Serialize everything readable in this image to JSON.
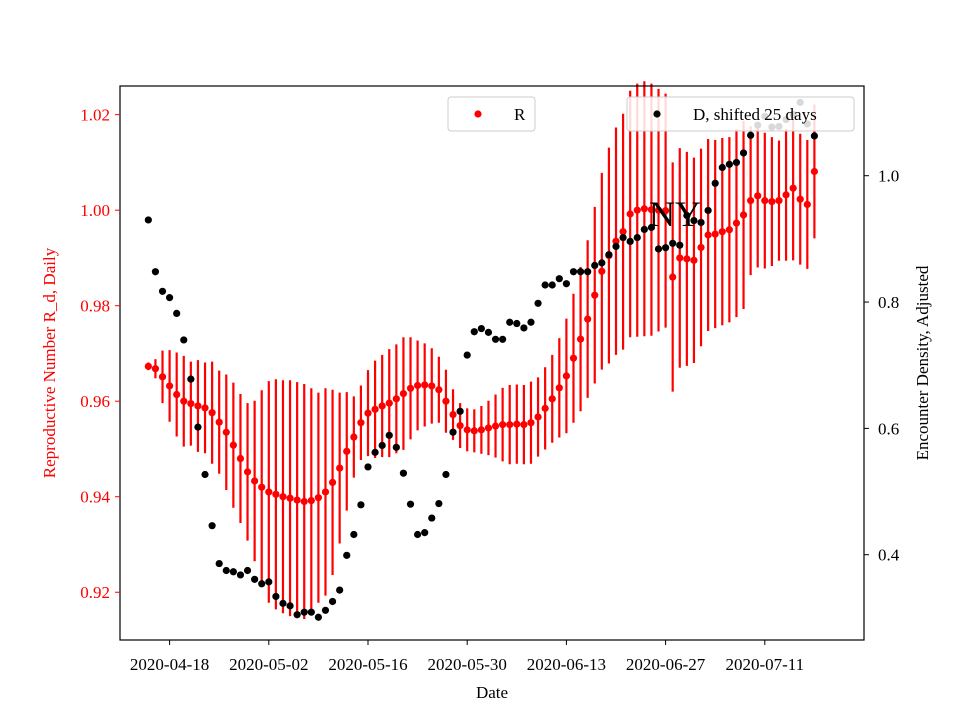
{
  "chart_data": {
    "type": "scatter",
    "title": "",
    "annotation": "NY",
    "xlabel": "Date",
    "ylabel_left": "Reproductive Number R_d, Daily",
    "ylabel_right": "Encounter Density, Adjusted",
    "x_ticks": [
      "2020-04-18",
      "2020-05-02",
      "2020-05-16",
      "2020-05-30",
      "2020-06-13",
      "2020-06-27",
      "2020-07-11"
    ],
    "y_left_ticks": [
      "0.92",
      "0.94",
      "0.96",
      "0.98",
      "1.00",
      "1.02"
    ],
    "y_right_ticks": [
      "0.4",
      "0.6",
      "0.8",
      "1.0"
    ],
    "xlim": [
      "2020-04-11",
      "2020-07-25"
    ],
    "ylim_left": [
      0.91,
      1.026
    ],
    "ylim_right": [
      0.265,
      1.142
    ],
    "grid": false,
    "colors": {
      "R": "#ff0000",
      "D": "#000000",
      "axis_left": "#ff0000",
      "axis_right": "#000000"
    },
    "legend_R": {
      "position": "top-center",
      "label": "R"
    },
    "legend_D": {
      "position": "top-right",
      "label": "D, shifted 25 days"
    },
    "series_R": {
      "name": "R",
      "start_date": "2020-04-15",
      "values": [
        0.9673,
        0.9668,
        0.9651,
        0.9632,
        0.9614,
        0.96,
        0.9595,
        0.959,
        0.9586,
        0.9576,
        0.9556,
        0.9535,
        0.9508,
        0.948,
        0.9452,
        0.9433,
        0.942,
        0.941,
        0.9405,
        0.94,
        0.9397,
        0.9393,
        0.939,
        0.9392,
        0.9398,
        0.941,
        0.943,
        0.946,
        0.9495,
        0.9525,
        0.9555,
        0.9575,
        0.9583,
        0.959,
        0.9596,
        0.9605,
        0.9616,
        0.9627,
        0.9633,
        0.9634,
        0.9632,
        0.9624,
        0.96,
        0.9572,
        0.9549,
        0.954,
        0.9538,
        0.954,
        0.9544,
        0.9548,
        0.9551,
        0.9551,
        0.9552,
        0.9551,
        0.9555,
        0.9567,
        0.9585,
        0.9605,
        0.9628,
        0.9653,
        0.969,
        0.973,
        0.9772,
        0.9822,
        0.9872,
        0.9905,
        0.9935,
        0.9955,
        0.9992,
        1.0,
        1.0003,
        1.0001,
        1.0,
        0.9999,
        0.986,
        0.99,
        0.9898,
        0.9895,
        0.9922,
        0.9948,
        0.995,
        0.9955,
        0.9959,
        0.9973,
        0.999,
        1.002,
        1.003,
        1.002,
        1.0018,
        1.002,
        1.0032,
        1.0046,
        1.0023,
        1.0012,
        1.0081
      ],
      "error": [
        0.0008,
        0.002,
        0.0055,
        0.0075,
        0.0088,
        0.0095,
        0.0088,
        0.0096,
        0.0095,
        0.0107,
        0.0108,
        0.0121,
        0.0131,
        0.0135,
        0.0144,
        0.0168,
        0.0203,
        0.0232,
        0.0241,
        0.0244,
        0.0247,
        0.0247,
        0.0246,
        0.0235,
        0.022,
        0.0217,
        0.0194,
        0.0158,
        0.0124,
        0.0085,
        0.0078,
        0.009,
        0.0102,
        0.0107,
        0.0113,
        0.0114,
        0.0118,
        0.0107,
        0.0094,
        0.0087,
        0.0079,
        0.0069,
        0.0066,
        0.0053,
        0.0047,
        0.0045,
        0.0045,
        0.005,
        0.0057,
        0.0066,
        0.0077,
        0.0083,
        0.0083,
        0.0083,
        0.0086,
        0.0083,
        0.0086,
        0.0092,
        0.0104,
        0.012,
        0.0135,
        0.0151,
        0.0165,
        0.0185,
        0.0206,
        0.0226,
        0.0238,
        0.0247,
        0.0258,
        0.0265,
        0.0267,
        0.0264,
        0.0254,
        0.0245,
        0.024,
        0.023,
        0.0224,
        0.0215,
        0.0207,
        0.0201,
        0.0197,
        0.0196,
        0.0194,
        0.0197,
        0.0197,
        0.0156,
        0.015,
        0.0142,
        0.0135,
        0.0126,
        0.0138,
        0.0151,
        0.0137,
        0.0135,
        0.014
      ]
    },
    "series_D": {
      "name": "D, shifted 25 days",
      "start_date": "2020-04-15",
      "values": [
        0.93,
        0.848,
        0.817,
        0.807,
        0.782,
        0.74,
        0.678,
        0.602,
        0.527,
        0.446,
        0.386,
        0.375,
        0.373,
        0.368,
        0.375,
        0.361,
        0.354,
        0.357,
        0.334,
        0.323,
        0.319,
        0.305,
        0.309,
        0.309,
        0.301,
        0.312,
        0.326,
        0.344,
        0.399,
        0.432,
        0.479,
        0.539,
        0.562,
        0.573,
        0.589,
        0.57,
        0.529,
        0.48,
        0.432,
        0.435,
        0.458,
        0.481,
        0.527,
        0.594,
        0.627,
        0.716,
        0.753,
        0.758,
        0.752,
        0.741,
        0.741,
        0.768,
        0.766,
        0.759,
        0.768,
        0.798,
        0.827,
        0.827,
        0.837,
        0.829,
        0.848,
        0.848,
        0.848,
        0.858,
        0.862,
        0.875,
        0.888,
        0.902,
        0.896,
        0.902,
        0.915,
        0.918,
        0.884,
        0.886,
        0.893,
        0.89,
        0.937,
        0.929,
        0.926,
        0.945,
        0.988,
        1.013,
        1.018,
        1.021,
        1.036,
        1.064,
        1.08,
        1.094,
        1.077,
        1.078,
        1.089,
        1.097,
        1.116,
        1.082,
        1.063
      ]
    }
  }
}
